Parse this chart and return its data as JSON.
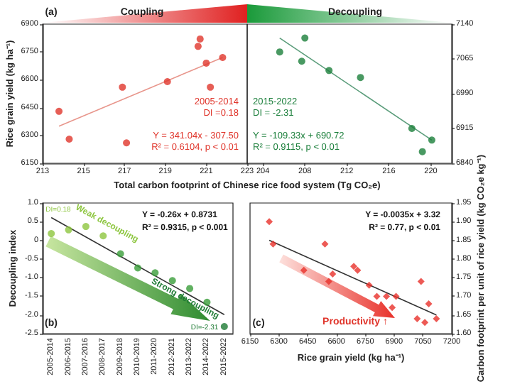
{
  "chart_data": [
    {
      "type": "scatter",
      "title": "(a)",
      "xlabel": "Total carbon footprint of Chinese rice food system (Tg CO₂e)",
      "ylabel": "Rice grain yield (kg ha⁻¹)",
      "xlim": [
        213,
        223
      ],
      "xticks": [
        213,
        215,
        217,
        219,
        221,
        223
      ],
      "ylim": [
        6150,
        6900
      ],
      "yticks": [
        6150,
        6300,
        6450,
        6600,
        6750,
        6900
      ],
      "grid": false,
      "series": [
        {
          "color": "#e0362c",
          "marker": "circle",
          "x": [
            213.8,
            214.3,
            216.9,
            217.1,
            219.1,
            220.6,
            220.7,
            221.0,
            221.2,
            221.8
          ],
          "values": [
            6430,
            6280,
            6560,
            6260,
            6590,
            6780,
            6820,
            6690,
            6560,
            6720
          ]
        },
        {
          "type": "line",
          "marker": "none",
          "color": "#e8968c",
          "x": [
            213.8,
            221.8
          ],
          "values": [
            6350,
            6720
          ]
        }
      ],
      "annotations": [
        "Coupling",
        "2005-2014",
        "DI =0.18",
        "Y = 341.04x - 307.50",
        "R² = 0.6104, p < 0.01"
      ]
    },
    {
      "type": "scatter",
      "xlim": [
        202.5,
        222
      ],
      "xticks": [
        204,
        208,
        212,
        216,
        220
      ],
      "y2lim": [
        6840,
        7140
      ],
      "y2ticks": [
        6840,
        6915,
        6990,
        7065,
        7140
      ],
      "grid": false,
      "series": [
        {
          "color": "#1b7f3b",
          "marker": "circle",
          "axis": "y2",
          "x": [
            205.6,
            208.0,
            207.7,
            210.3,
            213.3,
            218.2,
            219.2,
            220.1
          ],
          "values": [
            7080,
            7110,
            7060,
            7040,
            7025,
            6915,
            6865,
            6890
          ]
        },
        {
          "type": "line",
          "marker": "none",
          "color": "#5a9c7a",
          "axis": "y2",
          "x": [
            205.6,
            220.1
          ],
          "values": [
            7110,
            6890
          ]
        }
      ],
      "annotations": [
        "Decoupling",
        "2015-2022",
        "DI = -2.31",
        "Y = -109.33x + 690.72",
        "R² = 0.9115, p < 0.01"
      ]
    },
    {
      "type": "scatter",
      "title": "(b)",
      "ylabel": "Decoupling index",
      "categories": [
        "2005-2014",
        "2006-2015",
        "2007-2016",
        "2008-2017",
        "2009-2018",
        "2010-2019",
        "2011-2020",
        "2012-2021",
        "2013-2022",
        "2014-2022",
        "2015-2022"
      ],
      "ylim": [
        -2.5,
        1
      ],
      "yticks": [
        {
          "value": -2.5,
          "label": "-2.5"
        },
        {
          "value": -2,
          "label": "-2.0"
        },
        {
          "value": -1.5,
          "label": "-1.5"
        },
        {
          "value": -1,
          "label": "-1.0"
        },
        -0.5,
        0,
        0.5,
        {
          "value": 1,
          "label": "1.0"
        }
      ],
      "grid": false,
      "series": [
        {
          "marker": "circle",
          "values": [
            0.18,
            0.28,
            0.37,
            0.12,
            -0.36,
            -0.74,
            -0.87,
            -1.08,
            -1.29,
            -1.66,
            -2.31
          ],
          "colors": [
            "#8dc63f",
            "#8dc63f",
            "#8dc63f",
            "#8dc63f",
            "#3a9d3a",
            "#3a9d3a",
            "#3a9d3a",
            "#3a9d3a",
            "#3a9d3a",
            "#3a9d3a",
            "#1e7b34"
          ]
        },
        {
          "type": "line",
          "marker": "none",
          "color": "#333333",
          "values": [
            0.61,
            null,
            null,
            null,
            null,
            null,
            null,
            null,
            null,
            null,
            -1.99
          ]
        }
      ],
      "annotations": [
        "Weak decoupling",
        "Strong decoupling",
        "DI=0.18",
        "DI=-2.31",
        "Y = -0.26x + 0.8731",
        "R² = 0.9315, p < 0.001"
      ]
    },
    {
      "type": "scatter",
      "title": "(c)",
      "xlabel": "Rice grain yield (kg ha⁻¹)",
      "y2label": "Carbon footprint per unit of rice yield (kg CO₂e kg⁻¹)",
      "xlim": [
        6150,
        7200
      ],
      "xticks": [
        6150,
        6300,
        6450,
        6600,
        6750,
        6900,
        7050,
        7200
      ],
      "y2lim": [
        1.6,
        1.95
      ],
      "y2ticks": [
        {
          "value": 1.6,
          "label": "1.60"
        },
        1.65,
        {
          "value": 1.7,
          "label": "1.70"
        },
        1.75,
        {
          "value": 1.8,
          "label": "1.80"
        },
        1.85,
        {
          "value": 1.9,
          "label": "1.90"
        },
        1.95
      ],
      "grid": false,
      "series": [
        {
          "color": "#e8312a",
          "marker": "diamond",
          "axis": "y2",
          "x": [
            6250,
            6270,
            6430,
            6540,
            6560,
            6580,
            6690,
            6710,
            6770,
            6810,
            6860,
            6890,
            6910,
            7020,
            7040,
            7060,
            7080,
            7120
          ],
          "values": [
            1.9,
            1.84,
            1.77,
            1.84,
            1.74,
            1.76,
            1.78,
            1.77,
            1.73,
            1.7,
            1.7,
            1.67,
            1.7,
            1.64,
            1.74,
            1.63,
            1.68,
            1.64
          ]
        },
        {
          "type": "line",
          "marker": "none",
          "color": "#333333",
          "axis": "y2",
          "x": [
            6250,
            7120
          ],
          "values": [
            1.85,
            1.65
          ]
        }
      ],
      "annotations": [
        "Y = -0.0035x + 3.32",
        "R² = 0.77, p < 0.01",
        "Productivity ↑"
      ]
    }
  ]
}
